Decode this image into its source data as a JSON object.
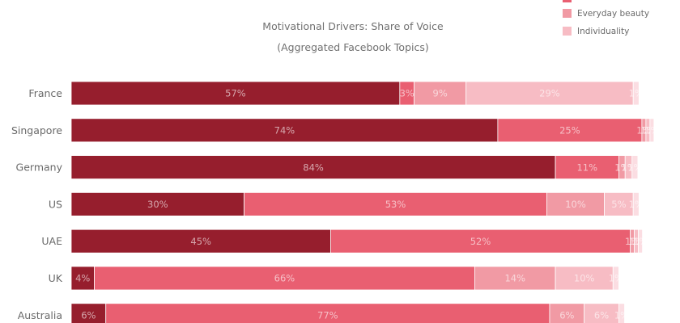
{
  "chart_data": {
    "type": "bar",
    "orientation": "horizontal",
    "stacked": true,
    "title": "Motivational Drivers: Share of Voice",
    "subtitle": "(Aggregated Facebook Topics)",
    "xlim": [
      0,
      100
    ],
    "grid": false,
    "legend_position": "top-right",
    "categories": [
      "France",
      "Singapore",
      "Germany",
      "US",
      "UAE",
      "UK",
      "Australia"
    ],
    "series": [
      {
        "name": "",
        "color": "#961e2d",
        "values": [
          57,
          74,
          84,
          30,
          45,
          4,
          6
        ],
        "labels": [
          "57%",
          "74%",
          "84%",
          "30%",
          "45%",
          "4%",
          "6%"
        ]
      },
      {
        "name": "",
        "color": "#e95f71",
        "values": [
          2.5,
          25,
          11,
          52.5,
          52,
          66,
          77
        ],
        "labels": [
          "3%",
          "25%",
          "11%",
          "53%",
          "52%",
          "66%",
          "77%"
        ]
      },
      {
        "name": "Everyday beauty",
        "color": "#f19aa4",
        "values": [
          9,
          0.7,
          1.1,
          10,
          0.7,
          14,
          6
        ],
        "labels": [
          "9%",
          "1%",
          "1%",
          "10%",
          "1%",
          "14%",
          "6%"
        ]
      },
      {
        "name": "Individuality",
        "color": "#f7bcc4",
        "values": [
          29,
          0.7,
          1.2,
          5,
          0.7,
          10,
          6
        ],
        "labels": [
          "29%",
          "1%",
          "1%",
          "5%",
          "1%",
          "10%",
          "6%"
        ]
      },
      {
        "name": "",
        "color": "#fbdde2",
        "values": [
          1,
          0.7,
          1,
          1,
          0.7,
          1,
          1
        ],
        "labels": [
          "1%",
          "1%",
          "1%",
          "1%",
          "1%",
          "1%",
          "1%"
        ]
      }
    ]
  }
}
